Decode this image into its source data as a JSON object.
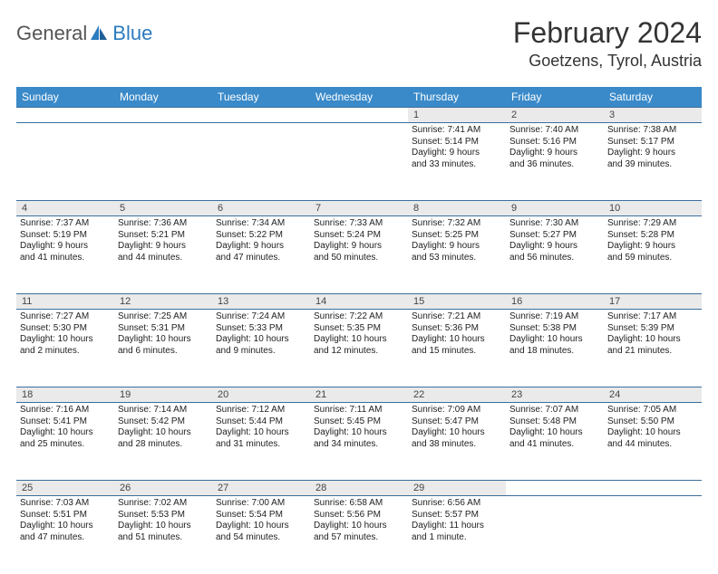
{
  "logo": {
    "word1": "General",
    "word2": "Blue"
  },
  "title": "February 2024",
  "location": "Goetzens, Tyrol, Austria",
  "day_headers": [
    "Sunday",
    "Monday",
    "Tuesday",
    "Wednesday",
    "Thursday",
    "Friday",
    "Saturday"
  ],
  "colors": {
    "header_bg": "#3a8ac9",
    "daynum_bg": "#eaeaea",
    "rule": "#3a6f9e",
    "logo_accent": "#2b7bbf"
  },
  "weeks": [
    [
      null,
      null,
      null,
      null,
      {
        "n": "1",
        "lines": [
          "Sunrise: 7:41 AM",
          "Sunset: 5:14 PM",
          "Daylight: 9 hours",
          "and 33 minutes."
        ]
      },
      {
        "n": "2",
        "lines": [
          "Sunrise: 7:40 AM",
          "Sunset: 5:16 PM",
          "Daylight: 9 hours",
          "and 36 minutes."
        ]
      },
      {
        "n": "3",
        "lines": [
          "Sunrise: 7:38 AM",
          "Sunset: 5:17 PM",
          "Daylight: 9 hours",
          "and 39 minutes."
        ]
      }
    ],
    [
      {
        "n": "4",
        "lines": [
          "Sunrise: 7:37 AM",
          "Sunset: 5:19 PM",
          "Daylight: 9 hours",
          "and 41 minutes."
        ]
      },
      {
        "n": "5",
        "lines": [
          "Sunrise: 7:36 AM",
          "Sunset: 5:21 PM",
          "Daylight: 9 hours",
          "and 44 minutes."
        ]
      },
      {
        "n": "6",
        "lines": [
          "Sunrise: 7:34 AM",
          "Sunset: 5:22 PM",
          "Daylight: 9 hours",
          "and 47 minutes."
        ]
      },
      {
        "n": "7",
        "lines": [
          "Sunrise: 7:33 AM",
          "Sunset: 5:24 PM",
          "Daylight: 9 hours",
          "and 50 minutes."
        ]
      },
      {
        "n": "8",
        "lines": [
          "Sunrise: 7:32 AM",
          "Sunset: 5:25 PM",
          "Daylight: 9 hours",
          "and 53 minutes."
        ]
      },
      {
        "n": "9",
        "lines": [
          "Sunrise: 7:30 AM",
          "Sunset: 5:27 PM",
          "Daylight: 9 hours",
          "and 56 minutes."
        ]
      },
      {
        "n": "10",
        "lines": [
          "Sunrise: 7:29 AM",
          "Sunset: 5:28 PM",
          "Daylight: 9 hours",
          "and 59 minutes."
        ]
      }
    ],
    [
      {
        "n": "11",
        "lines": [
          "Sunrise: 7:27 AM",
          "Sunset: 5:30 PM",
          "Daylight: 10 hours",
          "and 2 minutes."
        ]
      },
      {
        "n": "12",
        "lines": [
          "Sunrise: 7:25 AM",
          "Sunset: 5:31 PM",
          "Daylight: 10 hours",
          "and 6 minutes."
        ]
      },
      {
        "n": "13",
        "lines": [
          "Sunrise: 7:24 AM",
          "Sunset: 5:33 PM",
          "Daylight: 10 hours",
          "and 9 minutes."
        ]
      },
      {
        "n": "14",
        "lines": [
          "Sunrise: 7:22 AM",
          "Sunset: 5:35 PM",
          "Daylight: 10 hours",
          "and 12 minutes."
        ]
      },
      {
        "n": "15",
        "lines": [
          "Sunrise: 7:21 AM",
          "Sunset: 5:36 PM",
          "Daylight: 10 hours",
          "and 15 minutes."
        ]
      },
      {
        "n": "16",
        "lines": [
          "Sunrise: 7:19 AM",
          "Sunset: 5:38 PM",
          "Daylight: 10 hours",
          "and 18 minutes."
        ]
      },
      {
        "n": "17",
        "lines": [
          "Sunrise: 7:17 AM",
          "Sunset: 5:39 PM",
          "Daylight: 10 hours",
          "and 21 minutes."
        ]
      }
    ],
    [
      {
        "n": "18",
        "lines": [
          "Sunrise: 7:16 AM",
          "Sunset: 5:41 PM",
          "Daylight: 10 hours",
          "and 25 minutes."
        ]
      },
      {
        "n": "19",
        "lines": [
          "Sunrise: 7:14 AM",
          "Sunset: 5:42 PM",
          "Daylight: 10 hours",
          "and 28 minutes."
        ]
      },
      {
        "n": "20",
        "lines": [
          "Sunrise: 7:12 AM",
          "Sunset: 5:44 PM",
          "Daylight: 10 hours",
          "and 31 minutes."
        ]
      },
      {
        "n": "21",
        "lines": [
          "Sunrise: 7:11 AM",
          "Sunset: 5:45 PM",
          "Daylight: 10 hours",
          "and 34 minutes."
        ]
      },
      {
        "n": "22",
        "lines": [
          "Sunrise: 7:09 AM",
          "Sunset: 5:47 PM",
          "Daylight: 10 hours",
          "and 38 minutes."
        ]
      },
      {
        "n": "23",
        "lines": [
          "Sunrise: 7:07 AM",
          "Sunset: 5:48 PM",
          "Daylight: 10 hours",
          "and 41 minutes."
        ]
      },
      {
        "n": "24",
        "lines": [
          "Sunrise: 7:05 AM",
          "Sunset: 5:50 PM",
          "Daylight: 10 hours",
          "and 44 minutes."
        ]
      }
    ],
    [
      {
        "n": "25",
        "lines": [
          "Sunrise: 7:03 AM",
          "Sunset: 5:51 PM",
          "Daylight: 10 hours",
          "and 47 minutes."
        ]
      },
      {
        "n": "26",
        "lines": [
          "Sunrise: 7:02 AM",
          "Sunset: 5:53 PM",
          "Daylight: 10 hours",
          "and 51 minutes."
        ]
      },
      {
        "n": "27",
        "lines": [
          "Sunrise: 7:00 AM",
          "Sunset: 5:54 PM",
          "Daylight: 10 hours",
          "and 54 minutes."
        ]
      },
      {
        "n": "28",
        "lines": [
          "Sunrise: 6:58 AM",
          "Sunset: 5:56 PM",
          "Daylight: 10 hours",
          "and 57 minutes."
        ]
      },
      {
        "n": "29",
        "lines": [
          "Sunrise: 6:56 AM",
          "Sunset: 5:57 PM",
          "Daylight: 11 hours",
          "and 1 minute."
        ]
      },
      null,
      null
    ]
  ]
}
